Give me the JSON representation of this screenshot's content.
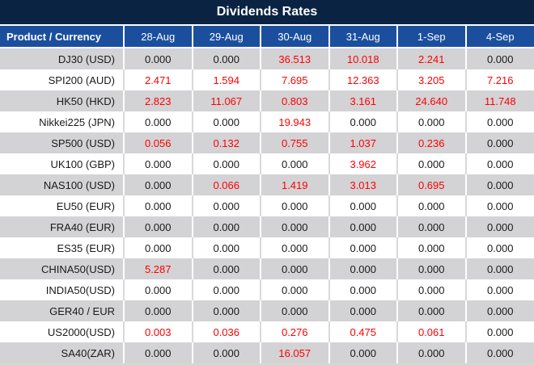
{
  "title": "Dividends Rates",
  "colors": {
    "title_navy": "#0A2342",
    "header_blue": "#1B4F9E",
    "row_gray": "#D3D3D5",
    "row_white": "#FFFFFF",
    "value_black": "#1A1A1A",
    "value_red": "#FF0000"
  },
  "chart_data": {
    "type": "table",
    "title": "Dividends Rates",
    "columns": [
      "Product / Currency",
      "28-Aug",
      "29-Aug",
      "30-Aug",
      "31-Aug",
      "1-Sep",
      "4-Sep"
    ],
    "rows": [
      {
        "product": "DJ30 (USD)",
        "values": [
          "0.000",
          "0.000",
          "36.513",
          "10.018",
          "2.241",
          "0.000"
        ],
        "red": [
          false,
          false,
          true,
          true,
          true,
          false
        ]
      },
      {
        "product": "SPI200 (AUD)",
        "values": [
          "2.471",
          "1.594",
          "7.695",
          "12.363",
          "3.205",
          "7.216"
        ],
        "red": [
          true,
          true,
          true,
          true,
          true,
          true
        ]
      },
      {
        "product": "HK50 (HKD)",
        "values": [
          "2.823",
          "11.067",
          "0.803",
          "3.161",
          "24.640",
          "11.748"
        ],
        "red": [
          true,
          true,
          true,
          true,
          true,
          true
        ]
      },
      {
        "product": "Nikkei225 (JPN)",
        "values": [
          "0.000",
          "0.000",
          "19.943",
          "0.000",
          "0.000",
          "0.000"
        ],
        "red": [
          false,
          false,
          true,
          false,
          false,
          false
        ]
      },
      {
        "product": "SP500 (USD)",
        "values": [
          "0.056",
          "0.132",
          "0.755",
          "1.037",
          "0.236",
          "0.000"
        ],
        "red": [
          true,
          true,
          true,
          true,
          true,
          false
        ]
      },
      {
        "product": "UK100 (GBP)",
        "values": [
          "0.000",
          "0.000",
          "0.000",
          "3.962",
          "0.000",
          "0.000"
        ],
        "red": [
          false,
          false,
          false,
          true,
          false,
          false
        ]
      },
      {
        "product": "NAS100 (USD)",
        "values": [
          "0.000",
          "0.066",
          "1.419",
          "3.013",
          "0.695",
          "0.000"
        ],
        "red": [
          false,
          true,
          true,
          true,
          true,
          false
        ]
      },
      {
        "product": "EU50 (EUR)",
        "values": [
          "0.000",
          "0.000",
          "0.000",
          "0.000",
          "0.000",
          "0.000"
        ],
        "red": [
          false,
          false,
          false,
          false,
          false,
          false
        ]
      },
      {
        "product": "FRA40 (EUR)",
        "values": [
          "0.000",
          "0.000",
          "0.000",
          "0.000",
          "0.000",
          "0.000"
        ],
        "red": [
          false,
          false,
          false,
          false,
          false,
          false
        ]
      },
      {
        "product": "ES35 (EUR)",
        "values": [
          "0.000",
          "0.000",
          "0.000",
          "0.000",
          "0.000",
          "0.000"
        ],
        "red": [
          false,
          false,
          false,
          false,
          false,
          false
        ]
      },
      {
        "product": "CHINA50(USD)",
        "values": [
          "5.287",
          "0.000",
          "0.000",
          "0.000",
          "0.000",
          "0.000"
        ],
        "red": [
          true,
          false,
          false,
          false,
          false,
          false
        ]
      },
      {
        "product": "INDIA50(USD)",
        "values": [
          "0.000",
          "0.000",
          "0.000",
          "0.000",
          "0.000",
          "0.000"
        ],
        "red": [
          false,
          false,
          false,
          false,
          false,
          false
        ]
      },
      {
        "product": "GER40 / EUR",
        "values": [
          "0.000",
          "0.000",
          "0.000",
          "0.000",
          "0.000",
          "0.000"
        ],
        "red": [
          false,
          false,
          false,
          false,
          false,
          false
        ]
      },
      {
        "product": "US2000(USD)",
        "values": [
          "0.003",
          "0.036",
          "0.276",
          "0.475",
          "0.061",
          "0.000"
        ],
        "red": [
          true,
          true,
          true,
          true,
          true,
          false
        ]
      },
      {
        "product": "SA40(ZAR)",
        "values": [
          "0.000",
          "0.000",
          "16.057",
          "0.000",
          "0.000",
          "0.000"
        ],
        "red": [
          false,
          false,
          true,
          false,
          false,
          false
        ]
      }
    ]
  }
}
